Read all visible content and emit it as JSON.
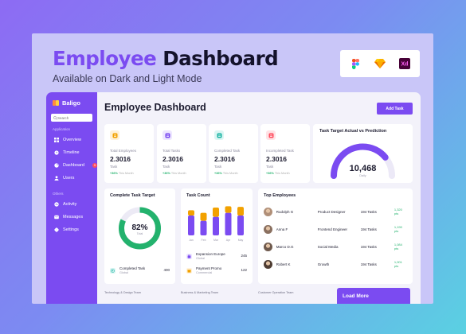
{
  "hero": {
    "title_accent": "Employee",
    "title_rest": "Dashboard",
    "subtitle": "Available on Dark and Light Mode"
  },
  "tools": [
    "figma-icon",
    "sketch-icon",
    "xd-icon"
  ],
  "tool_xd_label": "Xd",
  "sidebar": {
    "brand": "Baligo",
    "search_placeholder": "Search",
    "group_application": "Application",
    "group_others": "Others",
    "items": [
      {
        "label": "Overview",
        "icon": "grid-icon"
      },
      {
        "label": "Timeline",
        "icon": "clock-icon"
      },
      {
        "label": "Dashboard",
        "icon": "pie-icon",
        "badge": "9"
      },
      {
        "label": "Users",
        "icon": "user-icon"
      },
      {
        "label": "Activity",
        "icon": "activity-icon"
      },
      {
        "label": "Messages",
        "icon": "message-icon"
      },
      {
        "label": "Settings",
        "icon": "gear-icon"
      }
    ]
  },
  "main": {
    "title": "Employee Dashboard",
    "add_task": "Add Task"
  },
  "stats": [
    {
      "label": "Total Employees",
      "value": "2.3016",
      "unit": "Task",
      "trend": "+36%",
      "trend_note": "This Month",
      "color": "#f2a100",
      "bg": "#fff1d8"
    },
    {
      "label": "Total Tasks",
      "value": "2.3016",
      "unit": "Task",
      "trend": "+36%",
      "trend_note": "This Month",
      "color": "#7b4bf1",
      "bg": "#ede6ff"
    },
    {
      "label": "Completed Task",
      "value": "2.3016",
      "unit": "Task",
      "trend": "+36%",
      "trend_note": "This Month",
      "color": "#1db5a5",
      "bg": "#dcf6f3"
    },
    {
      "label": "Incompleted Task",
      "value": "2.3016",
      "unit": "Task",
      "trend": "+36%",
      "trend_note": "This Month",
      "color": "#ff4d5e",
      "bg": "#ffe2e5"
    }
  ],
  "target_card": {
    "title": "Task Target Actual vs Prediction",
    "value": "10,468",
    "unit": "Daily",
    "progress": 0.78
  },
  "complete_target": {
    "title": "Complete Task Target",
    "percent_label": "82%",
    "percent": 82,
    "center_sub": "Total",
    "legend_label": "Completed Task",
    "legend_sub": "Global",
    "legend_value": "400",
    "color": "#23b26d"
  },
  "task_count": {
    "title": "Task Count",
    "items": [
      {
        "label": "Expansion Europe",
        "sub": "Global",
        "value": "245",
        "color": "#7b4bf1",
        "bg": "#ede6ff"
      },
      {
        "label": "Payment Promo",
        "sub": "Commercial",
        "value": "122",
        "color": "#f2a100",
        "bg": "#fff1d8"
      }
    ]
  },
  "chart_data": {
    "type": "bar",
    "categories": [
      "Jan",
      "Feb",
      "Mar",
      "Apr",
      "May"
    ],
    "series": [
      {
        "values": [
          30,
          22,
          28,
          34,
          30
        ],
        "color": "#7b4bf1"
      },
      {
        "values": [
          8,
          12,
          14,
          10,
          13
        ],
        "color": "#f2a100"
      }
    ]
  },
  "top_employees": {
    "title": "Top Employees",
    "rows": [
      {
        "name": "Rudolph G",
        "role": "Product Designer",
        "tasks": "194 Tasks",
        "points": "1,320 pts",
        "avatar": "#b08f78"
      },
      {
        "name": "Anna F",
        "role": "Frontend Engineer",
        "tasks": "194 Tasks",
        "points": "1,190 pts",
        "avatar": "#8a7060"
      },
      {
        "name": "Marco D.G",
        "role": "Social Media",
        "tasks": "194 Tasks",
        "points": "1,084 pts",
        "avatar": "#6f5a4d"
      },
      {
        "name": "Robert K",
        "role": "Growth",
        "tasks": "194 Tasks",
        "points": "1,001 pts",
        "avatar": "#4f3d33"
      }
    ]
  },
  "bottom": {
    "labels": [
      "Technology & Design Team",
      "Business & Marketing Team",
      "Customer Operation Team"
    ],
    "load_more": "Load More"
  }
}
